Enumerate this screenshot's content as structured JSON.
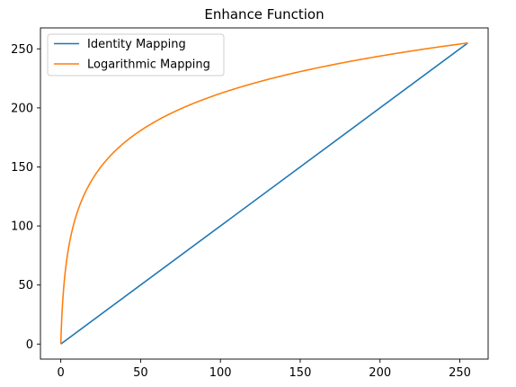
{
  "chart_data": {
    "type": "line",
    "title": "Enhance Function",
    "xlabel": "",
    "ylabel": "",
    "xlim": [
      -12.75,
      267.75
    ],
    "ylim": [
      -12.75,
      267.75
    ],
    "x_ticks": [
      0,
      50,
      100,
      150,
      200,
      250
    ],
    "y_ticks": [
      0,
      50,
      100,
      150,
      200,
      250
    ],
    "grid": false,
    "legend_position": "top-left",
    "series": [
      {
        "name": "Identity Mapping",
        "color": "#1f77b4",
        "formula": "y = x",
        "x": [
          0,
          255
        ],
        "y": [
          0,
          255
        ]
      },
      {
        "name": "Logarithmic Mapping",
        "color": "#ff7f0e",
        "formula": "y = 255 * log(1 + x) / log(256)",
        "x_range": [
          0,
          255
        ],
        "samples": 400
      }
    ]
  }
}
